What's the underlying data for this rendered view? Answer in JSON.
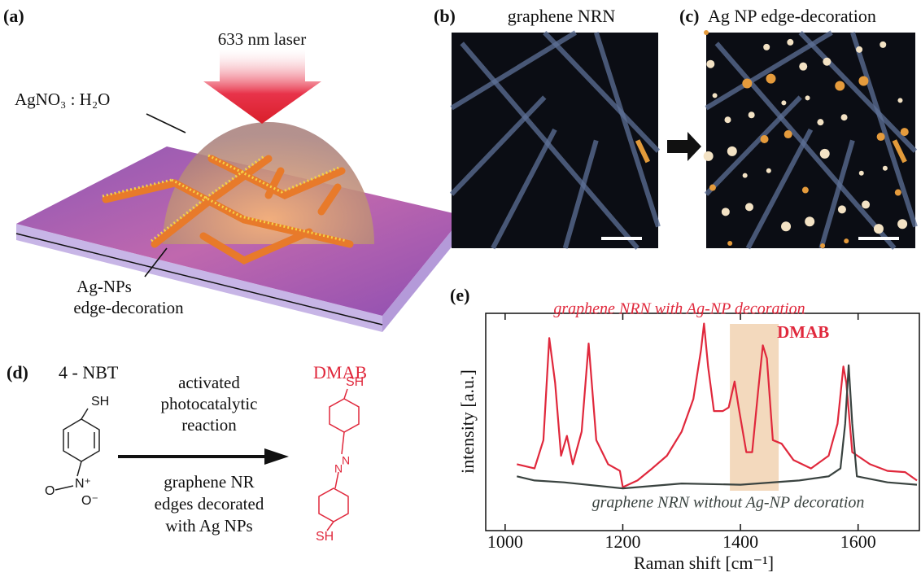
{
  "panel_a": {
    "label": "(a)",
    "laser": "633 nm laser",
    "solution": "AgNO₃ : H₂O",
    "np_line1": "Ag-NPs",
    "np_line2": "edge-decoration"
  },
  "panel_b": {
    "label": "(b)",
    "title": "graphene NRN"
  },
  "panel_c": {
    "label": "(c)",
    "title": "Ag NP edge-decoration"
  },
  "panel_d": {
    "label": "(d)",
    "reactant": "4 - NBT",
    "product": "DMAB",
    "above_arrow": [
      "activated",
      "photocatalytic",
      "reaction"
    ],
    "below_arrow": [
      "graphene NR",
      "edges decorated",
      "with Ag NPs"
    ],
    "thiol": "SH",
    "nitro_o1": "O",
    "nitro_n": "N⁺",
    "nitro_o2": "O⁻",
    "azo_n": "N"
  },
  "chart_data": {
    "type": "line",
    "panel_label": "(e)",
    "xlabel": "Raman shift [cm⁻¹]",
    "ylabel": "intensity [a.u.]",
    "xlim": [
      967,
      1700
    ],
    "ylim": [
      -0.75,
      2.85
    ],
    "xticks": [
      1000,
      1200,
      1400,
      1600
    ],
    "highlight": {
      "range": [
        1382,
        1465
      ],
      "label": "DMAB",
      "color": "#f3d9bd"
    },
    "series": [
      {
        "name": "graphene NRN with Ag-NP decoration",
        "color": "#e0283c",
        "x": [
          1020,
          1050,
          1065,
          1075,
          1085,
          1095,
          1105,
          1115,
          1130,
          1142,
          1155,
          1175,
          1195,
          1200,
          1225,
          1250,
          1275,
          1300,
          1320,
          1333,
          1338,
          1345,
          1355,
          1370,
          1380,
          1390,
          1397,
          1410,
          1420,
          1430,
          1438,
          1445,
          1455,
          1470,
          1490,
          1520,
          1550,
          1565,
          1575,
          1580,
          1590,
          1620,
          1650,
          1680,
          1700
        ],
        "values": [
          0.35,
          0.28,
          0.75,
          2.44,
          1.7,
          0.49,
          0.82,
          0.35,
          0.89,
          2.35,
          0.75,
          0.35,
          0.24,
          -0.03,
          0.08,
          0.28,
          0.49,
          0.89,
          1.43,
          2.24,
          2.68,
          1.97,
          1.23,
          1.23,
          1.29,
          1.72,
          1.29,
          0.55,
          0.55,
          1.56,
          2.32,
          2.1,
          0.75,
          0.69,
          0.42,
          0.28,
          0.49,
          1.02,
          1.97,
          1.7,
          0.55,
          0.35,
          0.24,
          0.22,
          0.08
        ]
      },
      {
        "name": "graphene NRN without Ag-NP decoration",
        "color": "#3a4340",
        "x": [
          1020,
          1050,
          1100,
          1200,
          1300,
          1400,
          1500,
          1550,
          1570,
          1578,
          1584,
          1590,
          1598,
          1650,
          1700
        ],
        "values": [
          0.15,
          0.08,
          0.05,
          -0.05,
          0.03,
          0.01,
          0.08,
          0.15,
          0.28,
          1.02,
          1.99,
          1.02,
          0.15,
          0.05,
          0.01
        ]
      }
    ]
  }
}
